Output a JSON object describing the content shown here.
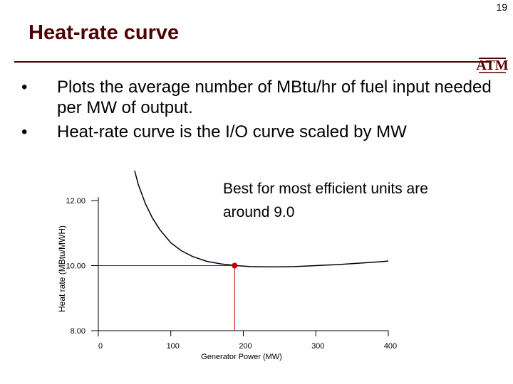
{
  "slide": {
    "number": "19",
    "title": "Heat-rate curve",
    "logo_text": "ATM",
    "bullets": [
      "Plots the average number of MBtu/hr of fuel input needed per MW of output.",
      "Heat-rate curve is the I/O curve scaled by MW"
    ],
    "bullet_symbol": "•"
  },
  "colors": {
    "title": "#500000",
    "curve": "#000000",
    "marker": "#c00000",
    "guide": "#c00000"
  },
  "chart_data": {
    "type": "line",
    "xlabel": "Generator Power (MW)",
    "ylabel": "Heat rate (MBtu/MWH)",
    "xlim": [
      0,
      400
    ],
    "ylim": [
      8,
      12
    ],
    "x_ticks": [
      0,
      100,
      200,
      300,
      400
    ],
    "x_tick_labels": [
      "0",
      "100",
      "200",
      "300",
      "400"
    ],
    "y_ticks": [
      8,
      10,
      12
    ],
    "y_tick_labels": [
      "8.00",
      "10.00",
      "12.00"
    ],
    "series": [
      {
        "name": "Heat-rate curve",
        "x": [
          48,
          55,
          65,
          75,
          85,
          100,
          115,
          130,
          150,
          170,
          190,
          210,
          230,
          250,
          270,
          290,
          310,
          330,
          350,
          370,
          390,
          400
        ],
        "y": [
          13.1,
          12.5,
          11.9,
          11.45,
          11.1,
          10.7,
          10.45,
          10.28,
          10.13,
          10.05,
          10.0,
          9.97,
          9.96,
          9.96,
          9.97,
          9.99,
          10.01,
          10.03,
          10.06,
          10.09,
          10.12,
          10.14
        ]
      }
    ],
    "highlight_point": {
      "x": 188,
      "y": 10.0
    },
    "annotation": {
      "lines": [
        "Best for most efficient units are",
        "around 9.0"
      ]
    }
  }
}
